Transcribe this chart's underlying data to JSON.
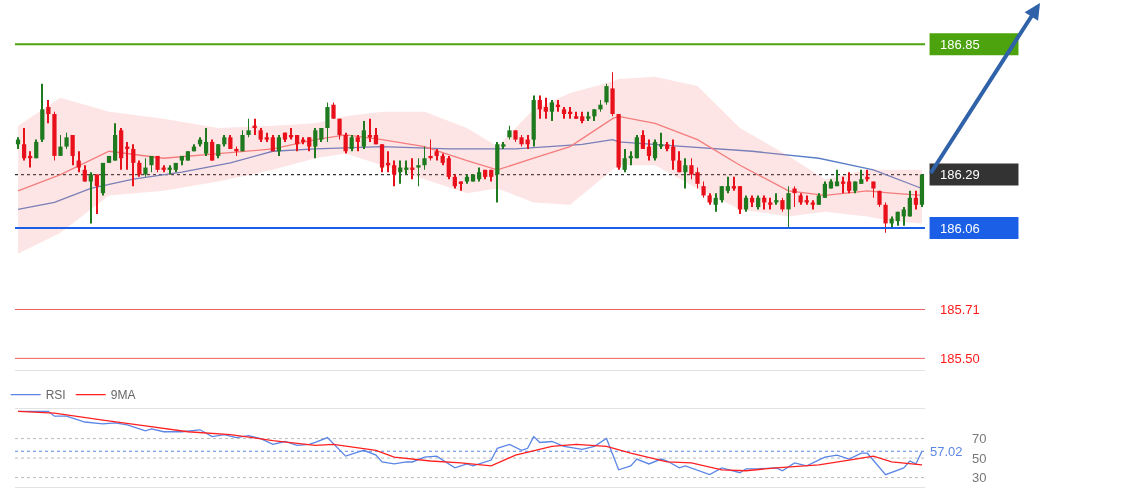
{
  "chart_data": [
    {
      "type": "candlestick",
      "tick_labels": "y",
      "legend": false,
      "categories": [
        null,
        null,
        null,
        null,
        null,
        null,
        null,
        null,
        null,
        null,
        null,
        null,
        null,
        null,
        null,
        null,
        null,
        null,
        null,
        null,
        null,
        null,
        null,
        null,
        null,
        null,
        null,
        null,
        null,
        null,
        null,
        null,
        null,
        null,
        null,
        null,
        null,
        null,
        null,
        null,
        null,
        null,
        null,
        null,
        null,
        null,
        null,
        null,
        null,
        null,
        null,
        null,
        null,
        null,
        null,
        null,
        null,
        null,
        null,
        null,
        null,
        null,
        null,
        null,
        null,
        null,
        null,
        null,
        null,
        null,
        null,
        null,
        null,
        null,
        null,
        null,
        null,
        null,
        null,
        null,
        null,
        null,
        null,
        null,
        null,
        null,
        null,
        null,
        null,
        null,
        null,
        null,
        null,
        null,
        null,
        null,
        null,
        null,
        null,
        null,
        null,
        null,
        null,
        null,
        null,
        null,
        null,
        null,
        null,
        null,
        null,
        null,
        null,
        null,
        null,
        null,
        null,
        null,
        null,
        null,
        null,
        null,
        null,
        null,
        null,
        null,
        null,
        null,
        null,
        null,
        null,
        null,
        null,
        null,
        null,
        null,
        null,
        null,
        null,
        null,
        null,
        null,
        null,
        null,
        null,
        null,
        null,
        null,
        null,
        null
      ],
      "ylim": [
        185.45,
        187.04
      ],
      "yticks": [
        186.85,
        186.29,
        186.06,
        185.71,
        {
          "value": 185.5,
          "label": "185.50"
        }
      ],
      "ohlc": [
        [
          186.42,
          186.45,
          186.4,
          186.44
        ],
        [
          186.42,
          186.49,
          186.35,
          186.36
        ],
        [
          186.37,
          186.39,
          186.32,
          186.36
        ],
        [
          186.36,
          186.44,
          186.36,
          186.43
        ],
        [
          186.44,
          186.68,
          186.43,
          186.57
        ],
        [
          186.58,
          186.61,
          186.51,
          186.55
        ],
        [
          186.55,
          186.56,
          186.35,
          186.37
        ],
        [
          186.37,
          186.46,
          186.37,
          186.41
        ],
        [
          186.41,
          186.47,
          186.4,
          186.45
        ],
        [
          186.46,
          186.46,
          186.33,
          186.37
        ],
        [
          186.35,
          186.39,
          186.3,
          186.32
        ],
        [
          186.31,
          186.33,
          186.26,
          186.26
        ],
        [
          186.26,
          186.3,
          186.08,
          186.29
        ],
        [
          186.29,
          186.29,
          186.12,
          186.24
        ],
        [
          186.21,
          186.34,
          186.2,
          186.34
        ],
        [
          186.34,
          186.37,
          186.34,
          186.37
        ],
        [
          186.35,
          186.51,
          186.35,
          186.46
        ],
        [
          186.48,
          186.49,
          186.31,
          186.36
        ],
        [
          186.41,
          186.43,
          186.31,
          186.4
        ],
        [
          186.4,
          186.42,
          186.24,
          186.34
        ],
        [
          186.34,
          186.35,
          186.28,
          186.29
        ],
        [
          186.29,
          186.36,
          186.28,
          186.32
        ],
        [
          186.33,
          186.37,
          186.3,
          186.37
        ],
        [
          186.37,
          186.37,
          186.3,
          186.31
        ],
        [
          186.32,
          186.33,
          186.3,
          186.31
        ],
        [
          186.31,
          186.33,
          186.29,
          186.32
        ],
        [
          186.31,
          186.34,
          186.3,
          186.34
        ],
        [
          186.35,
          186.37,
          186.33,
          186.37
        ],
        [
          186.35,
          186.39,
          186.35,
          186.39
        ],
        [
          186.39,
          186.42,
          186.39,
          186.41
        ],
        [
          186.42,
          186.45,
          186.41,
          186.44
        ],
        [
          186.38,
          186.49,
          186.37,
          186.43
        ],
        [
          186.43,
          186.44,
          186.35,
          186.35
        ],
        [
          186.37,
          186.42,
          186.36,
          186.42
        ],
        [
          186.42,
          186.46,
          186.41,
          186.45
        ],
        [
          186.45,
          186.46,
          186.4,
          186.4
        ],
        [
          186.4,
          186.41,
          186.37,
          186.39
        ],
        [
          186.39,
          186.48,
          186.39,
          186.46
        ],
        [
          186.46,
          186.53,
          186.45,
          186.48
        ],
        [
          186.5,
          186.53,
          186.46,
          186.49
        ],
        [
          186.48,
          186.49,
          186.43,
          186.44
        ],
        [
          186.45,
          186.47,
          186.43,
          186.44
        ],
        [
          186.45,
          186.46,
          186.39,
          186.39
        ],
        [
          186.39,
          186.46,
          186.37,
          186.45
        ],
        [
          186.47,
          186.47,
          186.43,
          186.44
        ],
        [
          186.46,
          186.49,
          186.44,
          186.45
        ],
        [
          186.46,
          186.46,
          186.39,
          186.42
        ],
        [
          186.44,
          186.45,
          186.42,
          186.43
        ],
        [
          186.45,
          186.45,
          186.39,
          186.41
        ],
        [
          186.41,
          186.49,
          186.36,
          186.48
        ],
        [
          186.44,
          186.49,
          186.43,
          186.49
        ],
        [
          186.49,
          186.6,
          186.43,
          186.58
        ],
        [
          186.59,
          186.6,
          186.53,
          186.53
        ],
        [
          186.53,
          186.53,
          186.44,
          186.46
        ],
        [
          186.46,
          186.47,
          186.38,
          186.39
        ],
        [
          186.4,
          186.46,
          186.39,
          186.45
        ],
        [
          186.45,
          186.46,
          186.39,
          186.43
        ],
        [
          186.41,
          186.52,
          186.4,
          186.48
        ],
        [
          186.46,
          186.53,
          186.43,
          186.45
        ],
        [
          186.46,
          186.49,
          186.42,
          186.42
        ],
        [
          186.42,
          186.42,
          186.3,
          186.32
        ],
        [
          186.34,
          186.39,
          186.3,
          186.33
        ],
        [
          186.33,
          186.35,
          186.24,
          186.29
        ],
        [
          186.3,
          186.35,
          186.25,
          186.32
        ],
        [
          186.31,
          186.35,
          186.29,
          186.32
        ],
        [
          186.32,
          186.36,
          186.27,
          186.31
        ],
        [
          186.32,
          186.36,
          186.24,
          186.33
        ],
        [
          186.33,
          186.41,
          186.31,
          186.36
        ],
        [
          186.37,
          186.44,
          186.35,
          186.36
        ],
        [
          186.39,
          186.4,
          186.35,
          186.37
        ],
        [
          186.37,
          186.38,
          186.33,
          186.34
        ],
        [
          186.36,
          186.37,
          186.27,
          186.28
        ],
        [
          186.28,
          186.29,
          186.23,
          186.24
        ],
        [
          186.26,
          186.26,
          186.22,
          186.25
        ],
        [
          186.26,
          186.29,
          186.25,
          186.28
        ],
        [
          186.26,
          186.29,
          186.26,
          186.29
        ],
        [
          186.27,
          186.32,
          186.26,
          186.3
        ],
        [
          186.31,
          186.31,
          186.27,
          186.28
        ],
        [
          186.31,
          186.31,
          186.26,
          186.28
        ],
        [
          186.29,
          186.43,
          186.17,
          186.42
        ],
        [
          186.41,
          186.43,
          186.4,
          186.42
        ],
        [
          186.45,
          186.5,
          186.44,
          186.48
        ],
        [
          186.48,
          186.48,
          186.43,
          186.44
        ],
        [
          186.45,
          186.46,
          186.41,
          186.42
        ],
        [
          186.44,
          186.46,
          186.4,
          186.42
        ],
        [
          186.44,
          186.63,
          186.41,
          186.61
        ],
        [
          186.61,
          186.63,
          186.53,
          186.57
        ],
        [
          186.58,
          186.62,
          186.53,
          186.56
        ],
        [
          186.56,
          186.61,
          186.52,
          186.6
        ],
        [
          186.59,
          186.61,
          186.56,
          186.58
        ],
        [
          186.57,
          186.58,
          186.53,
          186.55
        ],
        [
          186.56,
          186.58,
          186.53,
          186.55
        ],
        [
          186.54,
          186.56,
          186.53,
          186.53
        ],
        [
          186.54,
          186.56,
          186.51,
          186.52
        ],
        [
          186.53,
          186.56,
          186.52,
          186.54
        ],
        [
          186.54,
          186.57,
          186.52,
          186.57
        ],
        [
          186.57,
          186.61,
          186.56,
          186.59
        ],
        [
          186.6,
          186.68,
          186.59,
          186.67
        ],
        [
          186.66,
          186.73,
          186.54,
          186.55
        ],
        [
          186.55,
          186.55,
          186.31,
          186.32
        ],
        [
          186.31,
          186.4,
          186.3,
          186.36
        ],
        [
          186.36,
          186.39,
          186.33,
          186.37
        ],
        [
          186.36,
          186.46,
          186.36,
          186.45
        ],
        [
          186.46,
          186.48,
          186.4,
          186.4
        ],
        [
          186.41,
          186.44,
          186.35,
          186.37
        ],
        [
          186.36,
          186.44,
          186.35,
          186.43
        ],
        [
          186.41,
          186.47,
          186.4,
          186.42
        ],
        [
          186.42,
          186.43,
          186.39,
          186.4
        ],
        [
          186.41,
          186.44,
          186.31,
          186.35
        ],
        [
          186.35,
          186.39,
          186.3,
          186.3
        ],
        [
          186.3,
          186.36,
          186.23,
          186.33
        ],
        [
          186.33,
          186.36,
          186.27,
          186.29
        ],
        [
          186.3,
          186.32,
          186.23,
          186.25
        ],
        [
          186.24,
          186.26,
          186.19,
          186.2
        ],
        [
          186.2,
          186.21,
          186.16,
          186.17
        ],
        [
          186.16,
          186.21,
          186.13,
          186.19
        ],
        [
          186.18,
          186.24,
          186.17,
          186.24
        ],
        [
          186.22,
          186.28,
          186.21,
          186.24
        ],
        [
          186.24,
          186.28,
          186.22,
          186.23
        ],
        [
          186.24,
          186.24,
          186.12,
          186.14
        ],
        [
          186.14,
          186.2,
          186.13,
          186.19
        ],
        [
          186.19,
          186.2,
          186.15,
          186.17
        ],
        [
          186.15,
          186.2,
          186.14,
          186.19
        ],
        [
          186.19,
          186.2,
          186.14,
          186.17
        ],
        [
          186.17,
          186.19,
          186.14,
          186.16
        ],
        [
          186.17,
          186.21,
          186.16,
          186.18
        ],
        [
          186.18,
          186.19,
          186.13,
          186.14
        ],
        [
          186.14,
          186.24,
          186.06,
          186.21
        ],
        [
          186.23,
          186.24,
          186.15,
          186.21
        ],
        [
          186.2,
          186.21,
          186.16,
          186.17
        ],
        [
          186.18,
          186.2,
          186.16,
          186.17
        ],
        [
          186.17,
          186.18,
          186.14,
          186.16
        ],
        [
          186.16,
          186.21,
          186.16,
          186.2
        ],
        [
          186.19,
          186.26,
          186.19,
          186.25
        ],
        [
          186.23,
          186.27,
          186.23,
          186.26
        ],
        [
          186.24,
          186.31,
          186.24,
          186.26
        ],
        [
          186.26,
          186.28,
          186.21,
          186.25
        ],
        [
          186.26,
          186.3,
          186.21,
          186.22
        ],
        [
          186.22,
          186.26,
          186.21,
          186.26
        ],
        [
          186.25,
          186.31,
          186.25,
          186.27
        ],
        [
          186.28,
          186.31,
          186.26,
          186.27
        ],
        [
          186.26,
          186.26,
          186.19,
          186.23
        ],
        [
          186.22,
          186.22,
          186.15,
          186.16
        ],
        [
          186.16,
          186.17,
          186.04,
          186.08
        ],
        [
          186.08,
          186.11,
          186.06,
          186.1
        ],
        [
          186.09,
          186.13,
          186.07,
          186.13
        ],
        [
          186.11,
          186.15,
          186.07,
          186.14
        ],
        [
          186.11,
          186.22,
          186.11,
          186.19
        ],
        [
          186.19,
          186.22,
          186.14,
          186.16
        ],
        [
          186.16,
          186.29,
          186.15,
          186.29
        ]
      ],
      "series": [
        {
          "type": "line",
          "color": "#5b7fc7",
          "values": [
            186.14,
            null,
            null,
            null,
            null,
            null,
            186.17,
            null,
            null,
            null,
            null,
            null,
            186.23,
            null,
            null,
            null,
            null,
            null,
            null,
            186.27,
            null,
            null,
            null,
            null,
            null,
            null,
            null,
            186.3,
            null,
            null,
            null,
            null,
            null,
            null,
            null,
            186.34,
            null,
            null,
            null,
            null,
            null,
            null,
            186.39,
            null,
            null,
            null,
            null,
            null,
            null,
            186.4,
            null,
            null,
            null,
            null,
            null,
            null,
            null,
            null,
            null,
            null,
            186.41,
            null,
            null,
            null,
            null,
            null,
            null,
            null,
            null,
            null,
            null,
            186.4,
            null,
            null,
            null,
            null,
            null,
            null,
            null,
            null,
            null,
            null,
            186.4,
            null,
            null,
            null,
            null,
            null,
            null,
            null,
            null,
            null,
            null,
            186.42,
            null,
            null,
            null,
            null,
            186.44,
            186.43,
            null,
            null,
            null,
            null,
            null,
            null,
            null,
            null,
            null,
            null,
            186.41,
            null,
            null,
            null,
            null,
            null,
            null,
            null,
            null,
            null,
            null,
            186.39,
            null,
            null,
            null,
            null,
            null,
            null,
            null,
            null,
            null,
            null,
            186.36,
            null,
            null,
            null,
            null,
            null,
            null,
            null,
            null,
            186.31,
            null,
            null,
            null,
            null,
            null,
            null,
            null,
            186.23
          ]
        },
        {
          "type": "line",
          "color": "#f47c7c",
          "values": [
            186.22,
            null,
            null,
            null,
            null,
            null,
            null,
            186.29,
            null,
            null,
            null,
            null,
            null,
            null,
            null,
            186.39,
            null,
            null,
            null,
            null,
            null,
            null,
            null,
            null,
            186.36,
            null,
            null,
            null,
            null,
            null,
            null,
            null,
            null,
            186.38,
            null,
            null,
            null,
            null,
            null,
            null,
            null,
            null,
            186.4,
            null,
            null,
            null,
            null,
            null,
            null,
            186.44,
            null,
            null,
            null,
            null,
            186.46,
            null,
            null,
            null,
            null,
            null,
            186.44,
            null,
            null,
            null,
            null,
            null,
            null,
            186.41,
            null,
            null,
            null,
            null,
            null,
            null,
            186.35,
            null,
            null,
            null,
            null,
            186.31,
            null,
            null,
            null,
            null,
            null,
            186.36,
            null,
            null,
            null,
            null,
            null,
            186.41,
            null,
            null,
            null,
            null,
            null,
            null,
            186.53,
            186.54,
            null,
            null,
            null,
            null,
            null,
            186.51,
            null,
            null,
            null,
            null,
            null,
            null,
            186.44,
            null,
            null,
            null,
            null,
            null,
            null,
            186.33,
            null,
            null,
            null,
            null,
            null,
            null,
            null,
            186.22,
            null,
            null,
            null,
            null,
            null,
            186.2,
            null,
            null,
            null,
            null,
            null,
            null,
            186.22,
            null,
            null,
            null,
            186.21,
            null,
            null,
            null,
            null,
            186.2
          ],
          "upper": [
            186.5,
            null,
            null,
            null,
            null,
            null,
            null,
            186.62,
            null,
            null,
            null,
            null,
            null,
            null,
            null,
            186.56,
            null,
            null,
            null,
            null,
            null,
            null,
            null,
            null,
            186.53,
            null,
            null,
            null,
            null,
            null,
            null,
            null,
            null,
            186.49,
            null,
            null,
            null,
            null,
            null,
            null,
            null,
            null,
            186.5,
            null,
            null,
            null,
            null,
            null,
            null,
            186.51,
            null,
            null,
            null,
            null,
            186.54,
            null,
            null,
            null,
            null,
            null,
            186.56,
            null,
            null,
            null,
            null,
            null,
            null,
            186.56,
            null,
            null,
            null,
            null,
            null,
            null,
            186.49,
            null,
            null,
            null,
            null,
            186.41,
            null,
            null,
            null,
            null,
            null,
            186.57,
            null,
            null,
            null,
            null,
            null,
            186.64,
            null,
            null,
            null,
            null,
            null,
            null,
            186.69,
            186.7,
            null,
            null,
            null,
            null,
            null,
            186.71,
            null,
            null,
            null,
            null,
            null,
            null,
            186.67,
            null,
            null,
            null,
            null,
            null,
            null,
            186.49,
            null,
            null,
            null,
            null,
            null,
            null,
            null,
            186.37,
            null,
            null,
            null,
            null,
            null,
            186.27,
            null,
            null,
            null,
            null,
            null,
            null,
            186.31,
            null,
            null,
            null,
            186.31,
            null,
            null,
            null,
            null,
            186.31
          ],
          "lower": [
            185.95,
            null,
            null,
            null,
            null,
            null,
            null,
            186.04,
            null,
            null,
            null,
            null,
            null,
            null,
            null,
            186.2,
            null,
            null,
            null,
            null,
            null,
            null,
            null,
            null,
            186.22,
            null,
            null,
            null,
            null,
            null,
            null,
            null,
            null,
            186.26,
            null,
            null,
            null,
            null,
            null,
            null,
            null,
            null,
            186.31,
            null,
            null,
            null,
            null,
            null,
            null,
            186.36,
            null,
            null,
            null,
            null,
            186.38,
            null,
            null,
            null,
            null,
            null,
            186.33,
            null,
            null,
            null,
            null,
            null,
            null,
            186.27,
            null,
            null,
            null,
            null,
            null,
            null,
            186.21,
            null,
            null,
            null,
            null,
            186.23,
            null,
            null,
            null,
            null,
            null,
            186.17,
            null,
            null,
            null,
            null,
            null,
            186.16,
            null,
            null,
            null,
            null,
            null,
            null,
            186.31,
            186.33,
            null,
            null,
            null,
            null,
            null,
            186.33,
            null,
            null,
            null,
            null,
            null,
            null,
            186.23,
            null,
            null,
            null,
            null,
            null,
            null,
            186.14,
            null,
            null,
            null,
            null,
            null,
            null,
            null,
            186.11,
            null,
            null,
            null,
            null,
            null,
            186.13,
            null,
            null,
            null,
            null,
            null,
            null,
            186.11,
            null,
            null,
            null,
            186.09,
            null,
            null,
            null,
            null,
            186.08
          ]
        }
      ],
      "ref_lines": [
        {
          "axis": "y",
          "value": 186.85,
          "color": "#4ca30d"
        },
        {
          "axis": "y",
          "value": 186.29,
          "color": "#333333",
          "line_style": "dotted"
        },
        {
          "axis": "y",
          "value": 186.06,
          "color": "#1a5fe6"
        },
        {
          "axis": "y",
          "value": 185.71,
          "color": "#f06060"
        },
        {
          "axis": "y",
          "value": 185.5,
          "color": "#f06060"
        }
      ]
    },
    {
      "type": "line",
      "tick_labels": "y",
      "grid": "y",
      "legend": "top left",
      "categories": [
        null,
        null,
        null,
        null,
        null,
        null,
        null,
        null,
        null,
        null,
        null,
        null,
        null,
        null,
        null,
        null,
        null,
        null,
        null,
        null,
        null,
        null,
        null,
        null,
        null,
        null,
        null,
        null,
        null,
        null,
        null,
        null,
        null,
        null,
        null,
        null,
        null,
        null,
        null,
        null,
        null,
        null,
        null,
        null,
        null,
        null,
        null,
        null,
        null,
        null,
        null,
        null,
        null,
        null,
        null,
        null,
        null,
        null,
        null,
        null,
        null,
        null,
        null,
        null,
        null,
        null,
        null,
        null,
        null,
        null,
        null,
        null,
        null,
        null,
        null,
        null,
        null,
        null,
        null,
        null,
        null,
        null,
        null,
        null,
        null,
        null,
        null,
        null,
        null,
        null,
        null,
        null,
        null,
        null,
        null,
        null,
        null,
        null,
        null,
        null,
        null,
        null,
        null,
        null,
        null,
        null,
        null,
        null,
        null,
        null,
        null,
        null,
        null,
        null,
        null,
        null,
        null,
        null,
        null,
        null,
        null,
        null,
        null,
        null,
        null,
        null,
        null,
        null,
        null,
        null,
        null,
        null,
        null,
        null,
        null,
        null,
        null,
        null,
        null,
        null,
        null,
        null,
        null,
        null,
        null,
        null,
        null,
        null,
        null,
        null
      ],
      "ylim": [
        20,
        100
      ],
      "yticks": [
        70,
        50,
        30
      ],
      "series": [
        {
          "name": "RSI",
          "color": "#5b86e5",
          "values": [
            98,
            null,
            null,
            null,
            null,
            98,
            93,
            null,
            93,
            null,
            null,
            87,
            null,
            null,
            85,
            null,
            86,
            null,
            84,
            null,
            null,
            78,
            80,
            null,
            77,
            null,
            null,
            77,
            null,
            null,
            79,
            null,
            72,
            null,
            74,
            null,
            71,
            null,
            73,
            null,
            70,
            null,
            64,
            null,
            67,
            null,
            63,
            null,
            64,
            66,
            null,
            71,
            null,
            null,
            52,
            null,
            56,
            58,
            null,
            53,
            46,
            null,
            44,
            null,
            46,
            46,
            null,
            51,
            null,
            52,
            null,
            null,
            40,
            null,
            44,
            42,
            null,
            null,
            48,
            60,
            null,
            64,
            null,
            58,
            60,
            72,
            66,
            null,
            67,
            null,
            62,
            null,
            null,
            59,
            null,
            62,
            null,
            70,
            null,
            38,
            null,
            42,
            49,
            null,
            44,
            null,
            49,
            47,
            null,
            40,
            42,
            null,
            null,
            null,
            33,
            null,
            40,
            null,
            null,
            35,
            39,
            null,
            39,
            null,
            null,
            40,
            37,
            null,
            45,
            null,
            42,
            null,
            null,
            51,
            null,
            53,
            null,
            49,
            null,
            55,
            55,
            null,
            null,
            33,
            null,
            null,
            40,
            47,
            44,
            57.02
          ]
        },
        {
          "name": "9MA",
          "color": "#ff2020",
          "values": [
            98,
            null,
            null,
            null,
            null,
            null,
            96,
            null,
            null,
            null,
            null,
            null,
            null,
            null,
            89,
            null,
            null,
            null,
            null,
            null,
            null,
            83,
            null,
            null,
            null,
            null,
            null,
            null,
            77,
            null,
            null,
            null,
            null,
            null,
            null,
            74,
            null,
            null,
            null,
            null,
            null,
            null,
            68,
            null,
            null,
            null,
            null,
            null,
            null,
            63,
            null,
            null,
            64,
            null,
            null,
            null,
            null,
            null,
            null,
            58,
            null,
            null,
            51,
            null,
            null,
            null,
            null,
            null,
            47,
            null,
            null,
            null,
            null,
            45,
            null,
            null,
            null,
            null,
            42,
            null,
            null,
            null,
            53,
            null,
            null,
            null,
            null,
            null,
            62,
            null,
            null,
            null,
            64,
            null,
            null,
            null,
            null,
            62,
            null,
            null,
            null,
            55,
            null,
            null,
            null,
            null,
            null,
            46,
            null,
            null,
            null,
            45,
            null,
            null,
            null,
            null,
            38,
            null,
            null,
            null,
            37,
            null,
            null,
            null,
            null,
            40,
            null,
            null,
            null,
            null,
            null,
            null,
            43,
            null,
            null,
            null,
            null,
            48,
            null,
            null,
            null,
            52,
            null,
            null,
            46,
            null,
            null,
            null,
            null,
            43
          ]
        }
      ],
      "ref_lines": [
        {
          "axis": "y",
          "value": 57.02,
          "label": "57.02",
          "color": "#5b86e5",
          "line_style": "dotted"
        }
      ]
    }
  ]
}
